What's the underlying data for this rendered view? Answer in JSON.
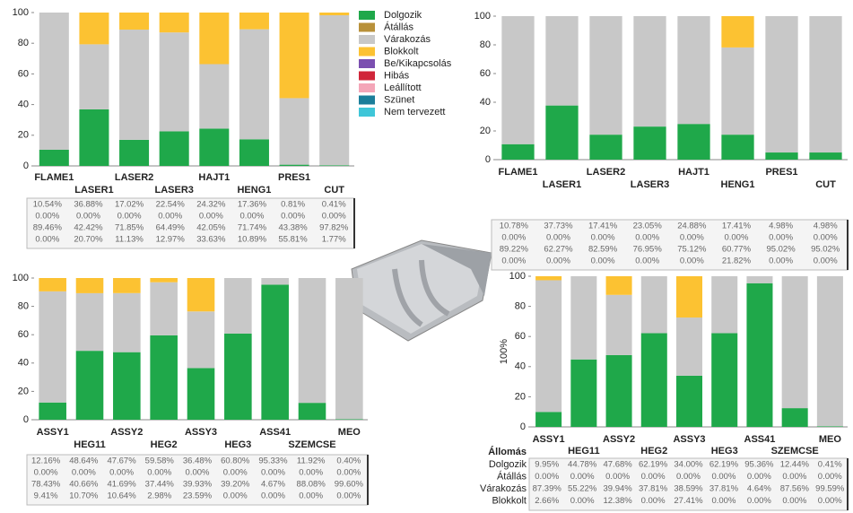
{
  "chart_data": [
    {
      "type": "bar",
      "stacked": true,
      "ylim": [
        0,
        100
      ],
      "yticks": [
        0,
        20,
        40,
        60,
        80,
        100
      ],
      "categories": [
        "FLAME1",
        "LASER1",
        "LASER2",
        "LASER3",
        "HAJT1",
        "HENG1",
        "PRES1",
        "CUT"
      ],
      "series": [
        {
          "name": "Dolgozik",
          "color": "#1fa84a",
          "values": [
            10.54,
            36.88,
            17.02,
            22.54,
            24.32,
            17.36,
            0.81,
            0.41
          ],
          "value_labels": [
            "10.54%",
            "36.88%",
            "17.02%",
            "22.54%",
            "24.32%",
            "17.36%",
            "0.81%",
            "0.41%"
          ]
        },
        {
          "name": "Átállás",
          "color": "#b8913a",
          "values": [
            0,
            0,
            0,
            0,
            0,
            0,
            0,
            0
          ],
          "value_labels": [
            "0.00%",
            "0.00%",
            "0.00%",
            "0.00%",
            "0.00%",
            "0.00%",
            "0.00%",
            "0.00%"
          ]
        },
        {
          "name": "Várakozás",
          "color": "#c8c8c8",
          "values": [
            89.46,
            42.42,
            71.85,
            64.49,
            42.05,
            71.74,
            43.38,
            97.82
          ],
          "value_labels": [
            "89.46%",
            "42.42%",
            "71.85%",
            "64.49%",
            "42.05%",
            "71.74%",
            "43.38%",
            "97.82%"
          ]
        },
        {
          "name": "Blokkolt",
          "color": "#fcc232",
          "values": [
            0,
            20.7,
            11.13,
            12.97,
            33.63,
            10.89,
            55.81,
            1.77
          ],
          "value_labels": [
            "0.00%",
            "20.70%",
            "11.13%",
            "12.97%",
            "33.63%",
            "10.89%",
            "55.81%",
            "1.77%"
          ]
        },
        {
          "name": "Be/Kikapcsolás",
          "color": "#7b4fb0"
        },
        {
          "name": "Hibás",
          "color": "#d0263a"
        },
        {
          "name": "Leállított",
          "color": "#f4a6b8"
        },
        {
          "name": "Szünet",
          "color": "#1b7e9a"
        },
        {
          "name": "Nem tervezett",
          "color": "#3fc6d8"
        }
      ]
    },
    {
      "type": "bar",
      "stacked": true,
      "ylim": [
        0,
        100
      ],
      "yticks": [
        0,
        20,
        40,
        60,
        80,
        100
      ],
      "categories": [
        "FLAME1",
        "LASER1",
        "LASER2",
        "LASER3",
        "HAJT1",
        "HENG1",
        "PRES1",
        "CUT"
      ],
      "series": [
        {
          "color": "#1fa84a",
          "values": [
            10.78,
            37.73,
            17.41,
            23.05,
            24.88,
            17.41,
            4.98,
            4.98
          ],
          "value_labels": [
            "10.78%",
            "37.73%",
            "17.41%",
            "23.05%",
            "24.88%",
            "17.41%",
            "4.98%",
            "4.98%"
          ]
        },
        {
          "color": "#b8913a",
          "values": [
            0,
            0,
            0,
            0,
            0,
            0,
            0,
            0
          ],
          "value_labels": [
            "0.00%",
            "0.00%",
            "0.00%",
            "0.00%",
            "0.00%",
            "0.00%",
            "0.00%",
            "0.00%"
          ]
        },
        {
          "color": "#c8c8c8",
          "values": [
            89.22,
            62.27,
            82.59,
            76.95,
            75.12,
            60.77,
            95.02,
            95.02
          ],
          "value_labels": [
            "89.22%",
            "62.27%",
            "82.59%",
            "76.95%",
            "75.12%",
            "60.77%",
            "95.02%",
            "95.02%"
          ]
        },
        {
          "color": "#fcc232",
          "values": [
            0,
            0,
            0,
            0,
            0,
            21.82,
            0,
            0
          ],
          "value_labels": [
            "0.00%",
            "0.00%",
            "0.00%",
            "0.00%",
            "0.00%",
            "21.82%",
            "0.00%",
            "0.00%"
          ]
        }
      ]
    },
    {
      "type": "bar",
      "stacked": true,
      "ylim": [
        0,
        100
      ],
      "yticks": [
        0,
        20,
        40,
        60,
        80,
        100
      ],
      "categories": [
        "ASSY1",
        "HEG11",
        "ASSY2",
        "HEG2",
        "ASSY3",
        "HEG3",
        "ASS41",
        "SZEMCSE",
        "MEO"
      ],
      "series": [
        {
          "color": "#1fa84a",
          "values": [
            12.16,
            48.64,
            47.67,
            59.58,
            36.48,
            60.8,
            95.33,
            11.92,
            0.4
          ],
          "value_labels": [
            "12.16%",
            "48.64%",
            "47.67%",
            "59.58%",
            "36.48%",
            "60.80%",
            "95.33%",
            "11.92%",
            "0.40%"
          ]
        },
        {
          "color": "#b8913a",
          "values": [
            0,
            0,
            0,
            0,
            0,
            0,
            0,
            0,
            0
          ],
          "value_labels": [
            "0.00%",
            "0.00%",
            "0.00%",
            "0.00%",
            "0.00%",
            "0.00%",
            "0.00%",
            "0.00%",
            "0.00%"
          ]
        },
        {
          "color": "#c8c8c8",
          "values": [
            78.43,
            40.66,
            41.69,
            37.44,
            39.93,
            39.2,
            4.67,
            88.08,
            99.6
          ],
          "value_labels": [
            "78.43%",
            "40.66%",
            "41.69%",
            "37.44%",
            "39.93%",
            "39.20%",
            "4.67%",
            "88.08%",
            "99.60%"
          ]
        },
        {
          "color": "#fcc232",
          "values": [
            9.41,
            10.7,
            10.64,
            2.98,
            23.59,
            0,
            0,
            0,
            0
          ],
          "value_labels": [
            "9.41%",
            "10.70%",
            "10.64%",
            "2.98%",
            "23.59%",
            "0.00%",
            "0.00%",
            "0.00%",
            "0.00%"
          ]
        }
      ]
    },
    {
      "type": "bar",
      "stacked": true,
      "ylim": [
        0,
        100
      ],
      "yticks": [
        0,
        20,
        40,
        60,
        80,
        100
      ],
      "ylabel": "100%",
      "table_header": "Állomás",
      "categories": [
        "ASSY1",
        "HEG11",
        "ASSY2",
        "HEG2",
        "ASSY3",
        "HEG3",
        "ASS41",
        "SZEMCSE",
        "MEO"
      ],
      "series": [
        {
          "name": "Dolgozik",
          "color": "#1fa84a",
          "values": [
            9.95,
            44.78,
            47.68,
            62.19,
            34,
            62.19,
            95.36,
            12.44,
            0.41
          ],
          "value_labels": [
            "9.95%",
            "44.78%",
            "47.68%",
            "62.19%",
            "34.00%",
            "62.19%",
            "95.36%",
            "12.44%",
            "0.41%"
          ]
        },
        {
          "name": "Átállás",
          "color": "#b8913a",
          "values": [
            0,
            0,
            0,
            0,
            0,
            0,
            0,
            0,
            0
          ],
          "value_labels": [
            "0.00%",
            "0.00%",
            "0.00%",
            "0.00%",
            "0.00%",
            "0.00%",
            "0.00%",
            "0.00%",
            "0.00%"
          ]
        },
        {
          "name": "Várakozás",
          "color": "#c8c8c8",
          "values": [
            87.39,
            55.22,
            39.94,
            37.81,
            38.59,
            37.81,
            4.64,
            87.56,
            99.59
          ],
          "value_labels": [
            "87.39%",
            "55.22%",
            "39.94%",
            "37.81%",
            "38.59%",
            "37.81%",
            "4.64%",
            "87.56%",
            "99.59%"
          ]
        },
        {
          "name": "Blokkolt",
          "color": "#fcc232",
          "values": [
            2.66,
            0,
            12.38,
            0,
            27.41,
            0,
            0,
            0,
            0
          ],
          "value_labels": [
            "2.66%",
            "0.00%",
            "12.38%",
            "0.00%",
            "27.41%",
            "0.00%",
            "0.00%",
            "0.00%",
            "0.00%"
          ]
        }
      ]
    }
  ]
}
